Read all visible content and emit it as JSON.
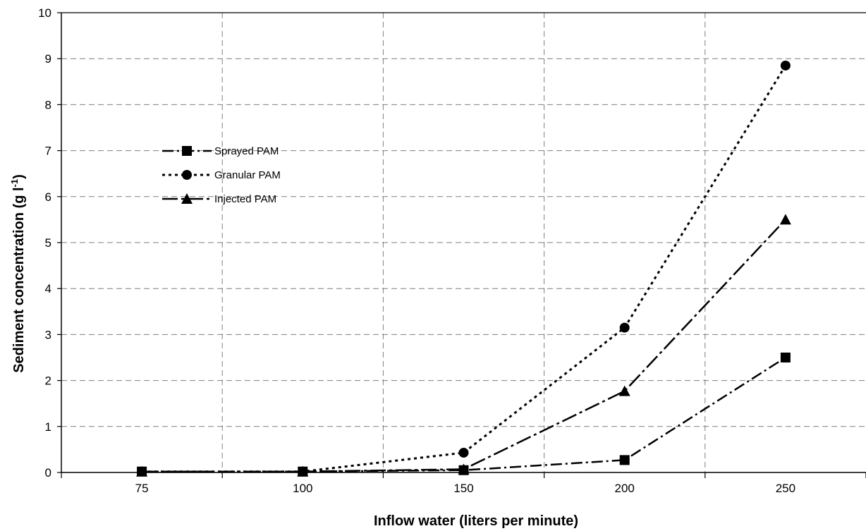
{
  "chart_data": {
    "type": "line",
    "title": "",
    "xlabel": "Inflow water (liters per minute)",
    "ylabel_main": "Sediment concentration (g l",
    "ylabel_sup": "-1",
    "ylabel_close": ")",
    "x_categories": [
      "75",
      "100",
      "150",
      "200",
      "250"
    ],
    "ylim": [
      0,
      10
    ],
    "yticks": [
      0,
      1,
      2,
      3,
      4,
      5,
      6,
      7,
      8,
      9,
      10
    ],
    "grid": true,
    "legend_position": "upper-left",
    "series": [
      {
        "name": "Sprayed PAM",
        "marker": "square",
        "dash": "sprayed",
        "values": [
          0.02,
          0.02,
          0.05,
          0.27,
          2.5
        ]
      },
      {
        "name": "Granular PAM",
        "marker": "circle",
        "dash": "granular",
        "values": [
          0.02,
          0.02,
          0.43,
          3.15,
          8.85
        ]
      },
      {
        "name": "Injected PAM",
        "marker": "triangle",
        "dash": "injected",
        "values": [
          0.02,
          0.02,
          0.07,
          1.77,
          5.5
        ]
      }
    ],
    "colors": {
      "line": "#000000",
      "grid": "#7f7f7f",
      "background": "#ffffff"
    }
  }
}
